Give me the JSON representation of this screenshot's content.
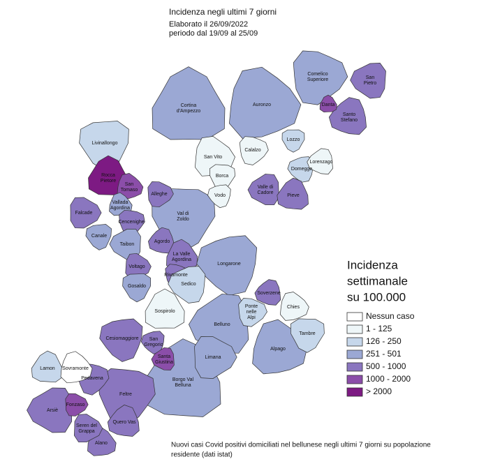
{
  "header": {
    "title": "Incidenza negli ultimi 7 giorni",
    "lines": [
      "Elaborato il 26/09/2022",
      "periodo dal 19/09 al 25/09"
    ]
  },
  "legend": {
    "title": [
      "Incidenza",
      "settimanale",
      "su 100.000"
    ],
    "items": [
      {
        "label": "Nessun caso",
        "color": "#ffffff"
      },
      {
        "label": "1 - 125",
        "color": "#eef6f8"
      },
      {
        "label": "126 - 250",
        "color": "#c6d7eb"
      },
      {
        "label": "251 - 501",
        "color": "#9ba8d4"
      },
      {
        "label": "500 - 1000",
        "color": "#8a76bf"
      },
      {
        "label": "1000 - 2000",
        "color": "#8b4ea9"
      },
      {
        "label": "> 2000",
        "color": "#7d1a83"
      }
    ]
  },
  "regions": [
    {
      "label": [
        "Cortina",
        "d'Ampezzo"
      ],
      "color": "#9ba8d4"
    },
    {
      "label": [
        "Auronzo"
      ],
      "color": "#9ba8d4"
    },
    {
      "label": [
        "Comelico",
        "Superiore"
      ],
      "color": "#9ba8d4"
    },
    {
      "label": [
        "Val di",
        "Zoldo"
      ],
      "color": "#9ba8d4"
    },
    {
      "label": [
        "Longarone"
      ],
      "color": "#9ba8d4"
    },
    {
      "label": [
        "Belluno"
      ],
      "color": "#9ba8d4"
    },
    {
      "label": [
        "Borgo Val",
        "Belluna"
      ],
      "color": "#9ba8d4"
    },
    {
      "label": [
        "Alpago"
      ],
      "color": "#9ba8d4"
    },
    {
      "label": [
        "Limana"
      ],
      "color": "#9ba8d4"
    },
    {
      "label": [
        "Feltre"
      ],
      "color": "#8a76bf"
    },
    {
      "label": [
        "Cesiomaggiore"
      ],
      "color": "#8a76bf"
    },
    {
      "label": [
        "Arsiè"
      ],
      "color": "#8a76bf"
    },
    {
      "label": [
        "Quero Vas"
      ],
      "color": "#8a76bf"
    },
    {
      "label": [
        "Alano"
      ],
      "color": "#8a76bf"
    },
    {
      "label": [
        "Seren del",
        "Grappa"
      ],
      "color": "#8a76bf"
    },
    {
      "label": [
        "Pedavena"
      ],
      "color": "#8a76bf"
    },
    {
      "label": [
        "Livinallongo"
      ],
      "color": "#c6d7eb"
    },
    {
      "label": [
        "San",
        "Pietro"
      ],
      "color": "#8a76bf"
    },
    {
      "label": [
        "Santo",
        "Stefano"
      ],
      "color": "#8a76bf"
    },
    {
      "label": [
        "Danta"
      ],
      "color": "#8b4ea9"
    },
    {
      "label": [
        "San Vito"
      ],
      "color": "#eef6f8"
    },
    {
      "label": [
        "Calalzo"
      ],
      "color": "#eef6f8"
    },
    {
      "label": [
        "Lozzo"
      ],
      "color": "#c6d7eb"
    },
    {
      "label": [
        "Domegge"
      ],
      "color": "#c6d7eb"
    },
    {
      "label": [
        "Lorenzago"
      ],
      "color": "#eef6f8"
    },
    {
      "label": [
        "Rocca",
        "Pietore"
      ],
      "color": "#7d1a83"
    },
    {
      "label": [
        "San",
        "Tomaso"
      ],
      "color": "#8b4ea9"
    },
    {
      "label": [
        "Alleghe"
      ],
      "color": "#8a76bf"
    },
    {
      "label": [
        "Borca"
      ],
      "color": "#eef6f8"
    },
    {
      "label": [
        "Vodo"
      ],
      "color": "#eef6f8"
    },
    {
      "label": [
        "Valle di",
        "Cadore"
      ],
      "color": "#8a76bf"
    },
    {
      "label": [
        "Pieve"
      ],
      "color": "#8a76bf"
    },
    {
      "label": [
        "Vallada",
        "Agordina"
      ],
      "color": "#9ba8d4"
    },
    {
      "label": [
        "Falcade"
      ],
      "color": "#8a76bf"
    },
    {
      "label": [
        "Cencenighe"
      ],
      "color": "#8a76bf"
    },
    {
      "label": [
        "Canale"
      ],
      "color": "#9ba8d4"
    },
    {
      "label": [
        "Taibon"
      ],
      "color": "#9ba8d4"
    },
    {
      "label": [
        "Agordo"
      ],
      "color": "#8a76bf"
    },
    {
      "label": [
        "La Valle",
        "Agordina"
      ],
      "color": "#8a76bf"
    },
    {
      "label": [
        "Voltago"
      ],
      "color": "#8a76bf"
    },
    {
      "label": [
        "Rivamonte"
      ],
      "color": "#8a76bf"
    },
    {
      "label": [
        "Gosaldo"
      ],
      "color": "#9ba8d4"
    },
    {
      "label": [
        "Sedico"
      ],
      "color": "#c6d7eb"
    },
    {
      "label": [
        "Soverzene"
      ],
      "color": "#8a76bf"
    },
    {
      "label": [
        "Sospirolo"
      ],
      "color": "#eef6f8"
    },
    {
      "label": [
        "Chies"
      ],
      "color": "#eef6f8"
    },
    {
      "label": [
        "Ponte",
        "nelle",
        "Alpi"
      ],
      "color": "#c6d7eb"
    },
    {
      "label": [
        "Tambre"
      ],
      "color": "#c6d7eb"
    },
    {
      "label": [
        "San",
        "Gregorio"
      ],
      "color": "#8a76bf"
    },
    {
      "label": [
        "Santa",
        "Giustina"
      ],
      "color": "#8b4ea9"
    },
    {
      "label": [
        "Lamon"
      ],
      "color": "#c6d7eb"
    },
    {
      "label": [
        "Sovramonte"
      ],
      "color": "#ffffff"
    },
    {
      "label": [
        "Fonzaso"
      ],
      "color": "#8b4ea9"
    }
  ],
  "footnote": [
    "Nuovi casi Covid positivi domiciliati nel bellunese negli ultimi 7 giorni su popolazione",
    "residente (dati istat)"
  ]
}
